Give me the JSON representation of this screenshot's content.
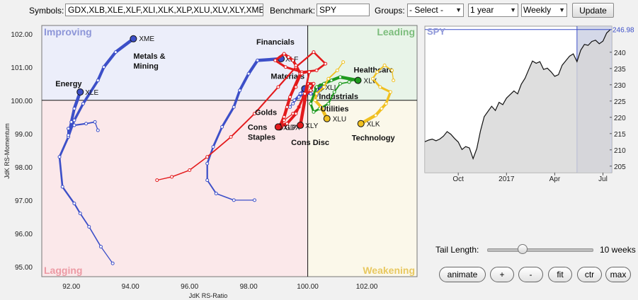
{
  "toolbar": {
    "symbols_label": "Symbols:",
    "symbols_value": "GDX,XLB,XLE,XLF,XLI,XLK,XLP,XLU,XLV,XLY,XME",
    "benchmark_label": "Benchmark:",
    "benchmark_value": "SPY",
    "groups_label": "Groups:",
    "groups_value": "- Select -",
    "period_value": "1 year",
    "frequency_value": "Weekly",
    "update_label": "Update"
  },
  "quadrants": {
    "improving": "Improving",
    "leading": "Leading",
    "lagging": "Lagging",
    "weakening": "Weakening"
  },
  "colors": {
    "improving_bg": "#eceefa",
    "leading_bg": "#e8f4e8",
    "lagging_bg": "#fbe8ea",
    "weakening_bg": "#fbf8ea",
    "blue": "#3c4fc8",
    "red": "#e31a1c",
    "green": "#1e9a1e",
    "yellow": "#f0c020"
  },
  "chart_data": [
    {
      "type": "scatter",
      "xlabel": "JdK RS-Ratio",
      "ylabel": "JdK RS-Momentum",
      "xlim": [
        91.0,
        103.7
      ],
      "ylim": [
        94.7,
        102.25
      ],
      "x_ticks": [
        {
          "v": 92,
          "label": "92.00"
        },
        {
          "v": 94,
          "label": "94.00"
        },
        {
          "v": 96,
          "label": "96.00"
        },
        {
          "v": 98,
          "label": "98.00"
        },
        {
          "v": 100,
          "label": "100.00"
        },
        {
          "v": 102,
          "label": "102.00"
        }
      ],
      "y_ticks": [
        {
          "v": 95,
          "label": "95.00"
        },
        {
          "v": 96,
          "label": "96.00"
        },
        {
          "v": 97,
          "label": "97.00"
        },
        {
          "v": 98,
          "label": "98.00"
        },
        {
          "v": 99,
          "label": "99.00"
        },
        {
          "v": 100,
          "label": "100.00"
        },
        {
          "v": 101,
          "label": "101.00"
        },
        {
          "v": 102,
          "label": "102.00"
        }
      ],
      "series": [
        {
          "symbol": "XME",
          "name": "Metals & Mining",
          "color": "#3c4fc8",
          "points": [
            [
              93.4,
              95.1
            ],
            [
              93.0,
              95.6
            ],
            [
              92.6,
              96.2
            ],
            [
              92.3,
              96.6
            ],
            [
              92.1,
              96.9
            ],
            [
              91.7,
              97.4
            ],
            [
              91.6,
              98.3
            ],
            [
              91.9,
              98.9
            ],
            [
              92.1,
              99.4
            ],
            [
              92.4,
              99.9
            ],
            [
              92.9,
              100.6
            ],
            [
              93.1,
              101.0
            ],
            [
              93.5,
              101.45
            ],
            [
              94.1,
              101.85
            ]
          ]
        },
        {
          "symbol": "XLE",
          "name": "Energy",
          "color": "#3c4fc8",
          "points": [
            [
              92.9,
              99.1
            ],
            [
              92.8,
              99.35
            ],
            [
              92.5,
              99.3
            ],
            [
              92.1,
              99.25
            ],
            [
              91.9,
              99.15
            ],
            [
              91.9,
              98.95
            ],
            [
              92.0,
              99.35
            ],
            [
              92.1,
              99.75
            ],
            [
              92.3,
              100.25
            ]
          ]
        },
        {
          "symbol": "XLF",
          "name": "Financials",
          "color": "#3c4fc8",
          "points": [
            [
              98.2,
              97.0
            ],
            [
              97.5,
              97.0
            ],
            [
              96.9,
              97.2
            ],
            [
              96.6,
              97.6
            ],
            [
              96.6,
              98.1
            ],
            [
              96.8,
              98.6
            ],
            [
              97.1,
              99.2
            ],
            [
              97.5,
              99.8
            ],
            [
              97.7,
              100.3
            ],
            [
              98.0,
              100.8
            ],
            [
              98.3,
              101.2
            ],
            [
              99.1,
              101.25
            ]
          ]
        },
        {
          "symbol": "XLB",
          "name": "Materials",
          "color": "#3c4fc8",
          "points": [
            [
              99.4,
              99.8
            ],
            [
              99.55,
              100.0
            ],
            [
              99.75,
              100.2
            ],
            [
              99.85,
              100.3
            ],
            [
              99.9,
              100.35
            ]
          ]
        },
        {
          "symbol": "XLI",
          "name": "Industrials",
          "color": "#3c4fc8",
          "points": [
            [
              99.5,
              99.9
            ],
            [
              99.7,
              100.1
            ],
            [
              99.9,
              100.2
            ],
            [
              100.1,
              100.2
            ],
            [
              100.3,
              100.15
            ],
            [
              100.45,
              100.4
            ]
          ]
        },
        {
          "symbol": "GDX",
          "name": "Golds",
          "color": "#e31a1c",
          "points": [
            [
              94.9,
              97.6
            ],
            [
              95.4,
              97.7
            ],
            [
              96.0,
              97.9
            ],
            [
              96.6,
              98.3
            ],
            [
              97.4,
              98.9
            ],
            [
              98.2,
              99.6
            ],
            [
              99.0,
              100.4
            ],
            [
              99.6,
              101.0
            ],
            [
              100.2,
              101.45
            ],
            [
              100.6,
              101.1
            ],
            [
              100.3,
              100.9
            ],
            [
              99.8,
              100.85
            ],
            [
              99.25,
              101.0
            ],
            [
              98.9,
              101.2
            ],
            [
              99.2,
              101.4
            ],
            [
              99.35,
              101.3
            ],
            [
              99.5,
              101.2
            ],
            [
              99.6,
              101.05
            ],
            [
              99.75,
              100.8
            ],
            [
              99.4,
              100.1
            ],
            [
              99.3,
              99.8
            ],
            [
              99.2,
              99.5
            ],
            [
              99.05,
              99.2
            ]
          ]
        },
        {
          "symbol": "XLY",
          "name": "Cons Disc",
          "color": "#e31a1c",
          "points": [
            [
              99.2,
              99.4
            ],
            [
              99.5,
              99.6
            ],
            [
              99.7,
              99.8
            ],
            [
              99.85,
              100.1
            ],
            [
              100.1,
              100.3
            ],
            [
              100.2,
              100.5
            ],
            [
              100.0,
              100.5
            ],
            [
              99.75,
              99.25
            ]
          ]
        },
        {
          "symbol": "XLP",
          "name": "Cons Staples",
          "color": "#e31a1c",
          "points": [
            [
              99.6,
              100.4
            ],
            [
              99.8,
              100.8
            ],
            [
              100.05,
              100.85
            ],
            [
              99.9,
              100.2
            ],
            [
              99.6,
              99.6
            ],
            [
              99.3,
              99.3
            ],
            [
              99.0,
              99.2
            ]
          ]
        },
        {
          "symbol": "XLV",
          "name": "Healthcare",
          "color": "#1e9a1e",
          "points": [
            [
              101.7,
              100.65
            ],
            [
              101.4,
              100.55
            ],
            [
              101.1,
              100.5
            ],
            [
              100.9,
              100.25
            ],
            [
              100.7,
              99.9
            ],
            [
              100.4,
              99.75
            ],
            [
              100.2,
              99.65
            ],
            [
              100.1,
              99.9
            ],
            [
              100.3,
              100.4
            ],
            [
              100.55,
              100.5
            ],
            [
              100.8,
              100.6
            ],
            [
              101.1,
              100.7
            ],
            [
              101.7,
              100.6
            ]
          ]
        },
        {
          "symbol": "XLU",
          "name": "Utilities",
          "color": "#f0c020",
          "points": [
            [
              101.2,
              101.15
            ],
            [
              101.0,
              100.9
            ],
            [
              100.7,
              100.65
            ],
            [
              100.55,
              100.4
            ],
            [
              100.3,
              100.2
            ],
            [
              100.25,
              100.0
            ],
            [
              100.45,
              99.8
            ],
            [
              100.65,
              99.45
            ]
          ]
        },
        {
          "symbol": "XLK",
          "name": "Technology",
          "color": "#f0c020",
          "points": [
            [
              102.9,
              100.6
            ],
            [
              102.85,
              100.9
            ],
            [
              102.6,
              101.05
            ],
            [
              102.35,
              100.85
            ],
            [
              102.2,
              100.65
            ],
            [
              102.45,
              100.4
            ],
            [
              102.8,
              100.25
            ],
            [
              102.65,
              99.9
            ],
            [
              102.5,
              99.75
            ],
            [
              102.3,
              99.55
            ],
            [
              101.8,
              99.3
            ]
          ]
        }
      ]
    },
    {
      "type": "area",
      "symbol": "SPY",
      "last_value": "246.98",
      "ylim": [
        203,
        248
      ],
      "y_ticks": [
        205,
        210,
        215,
        220,
        225,
        230,
        235,
        240,
        245
      ],
      "x_ticks": [
        {
          "i": 9,
          "label": "Oct"
        },
        {
          "i": 22,
          "label": "2017"
        },
        {
          "i": 35,
          "label": "Apr"
        },
        {
          "i": 48,
          "label": "Jul"
        }
      ],
      "tail_start_index": 41,
      "values": [
        212.5,
        213.0,
        213.3,
        212.8,
        213.3,
        214.2,
        215.6,
        214.8,
        213.5,
        212.4,
        210.1,
        211.0,
        210.6,
        207.3,
        210.4,
        215.9,
        220.2,
        221.8,
        223.4,
        222.1,
        224.6,
        223.9,
        225.9,
        227.0,
        228.1,
        227.2,
        230.2,
        232.0,
        234.7,
        237.3,
        236.6,
        237.1,
        234.7,
        235.1,
        234.0,
        232.6,
        233.1,
        236.0,
        237.4,
        238.8,
        239.5,
        237.1,
        240.6,
        242.4,
        242.1,
        243.3,
        243.7,
        242.6,
        243.4,
        245.9,
        246.98
      ]
    }
  ],
  "tail": {
    "label": "Tail Length:",
    "value": "10 weeks",
    "fraction": 0.34
  },
  "controls": {
    "animate": "animate",
    "plus": "+",
    "minus": "-",
    "fit": "fit",
    "ctr": "ctr",
    "max": "max"
  }
}
